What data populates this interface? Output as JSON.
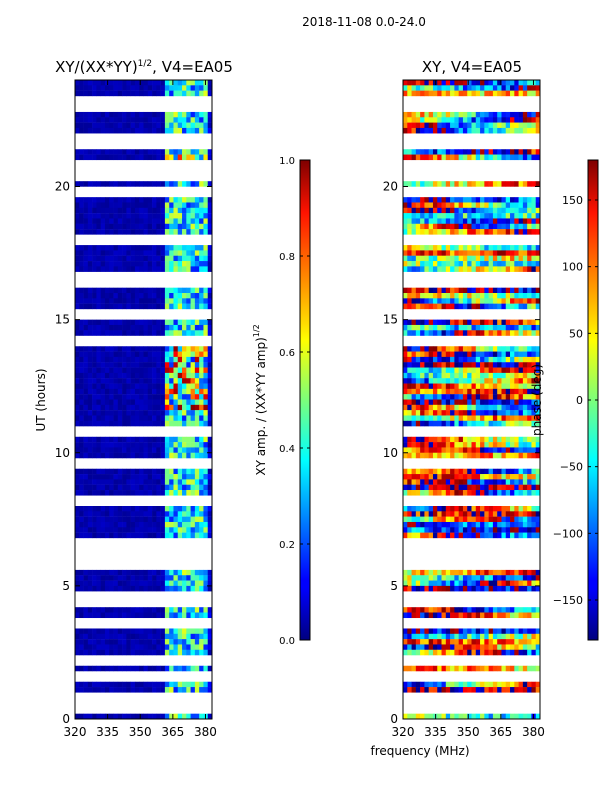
{
  "figure": {
    "suptitle": "2018-11-08 0.0-24.0",
    "xlabel": "frequency (MHz)"
  },
  "chart_data": [
    {
      "type": "heatmap",
      "title": "XY/(XX*YY)",
      "title_exp": "1/2",
      "title_suffix": ", V4=EA05",
      "ylabel": "UT (hours)",
      "xlim": [
        320,
        383
      ],
      "ylim": [
        0,
        24
      ],
      "xticks": [
        320,
        335,
        350,
        365,
        380
      ],
      "yticks": [
        0,
        5,
        10,
        15,
        20
      ],
      "colorbar": {
        "label": "XY amp. / (XX*YY amp)",
        "label_exp": "1/2",
        "range": [
          0.0,
          1.0
        ],
        "ticks": [
          "0.0",
          "0.2",
          "0.4",
          "0.6",
          "0.8",
          "1.0"
        ],
        "tick_values": [
          0.0,
          0.2,
          0.4,
          0.6,
          0.8,
          1.0
        ],
        "colormap": "jet"
      },
      "blank_rows_hours": [
        0.35,
        0.85,
        1.6,
        2.25,
        3.55,
        4.5,
        5.9,
        6.35,
        6.55,
        8.2,
        9.6,
        10.8,
        14.2,
        15.15,
        15.25,
        16.5,
        17.95,
        19.8,
        20.4,
        20.7,
        21.7,
        23.1
      ],
      "band_note": "low amplitude 320-360 MHz; enhanced 361-380 MHz, strongest near 12-14 h and 21 h"
    },
    {
      "type": "heatmap",
      "title": "XY, V4=EA05",
      "xlim": [
        320,
        383
      ],
      "ylim": [
        0,
        24
      ],
      "xticks": [
        320,
        335,
        350,
        365,
        380
      ],
      "yticks": [
        0,
        5,
        10,
        15,
        20
      ],
      "colorbar": {
        "label": "phase (deg)",
        "range": [
          -180,
          180
        ],
        "ticks": [
          "−150",
          "−100",
          "−50",
          "0",
          "50",
          "100",
          "150"
        ],
        "tick_values": [
          -150,
          -100,
          -50,
          0,
          50,
          100,
          150
        ],
        "colormap": "jet"
      },
      "blank_rows_hours": [
        0.35,
        0.85,
        1.6,
        2.25,
        3.55,
        4.5,
        5.9,
        6.35,
        6.55,
        8.2,
        9.6,
        10.8,
        14.2,
        15.15,
        15.25,
        16.5,
        17.95,
        19.8,
        20.4,
        20.7,
        21.7,
        23.1
      ]
    }
  ]
}
